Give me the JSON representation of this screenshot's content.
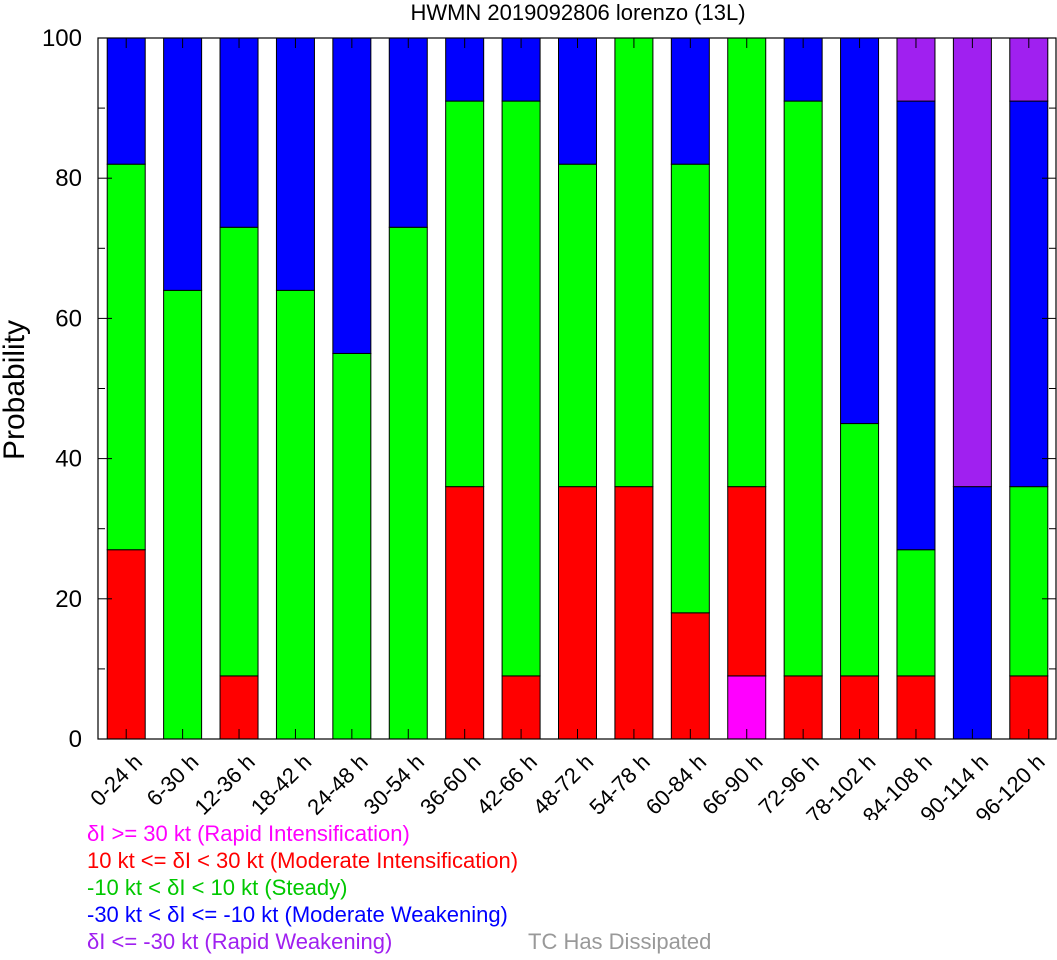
{
  "chart_data": {
    "type": "bar",
    "stacked": true,
    "title": "HWMN 2019092806 lorenzo (13L)",
    "xlabel": "",
    "ylabel": "Probability",
    "ylim": [
      0,
      100
    ],
    "yticks": [
      0,
      20,
      40,
      60,
      80,
      100
    ],
    "grid": false,
    "categories": [
      "0-24 h",
      "6-30 h",
      "12-36 h",
      "18-42 h",
      "24-48 h",
      "30-54 h",
      "36-60 h",
      "42-66 h",
      "48-72 h",
      "54-78 h",
      "60-84 h",
      "66-90 h",
      "72-96 h",
      "78-102 h",
      "84-108 h",
      "90-114 h",
      "96-120 h"
    ],
    "series": [
      {
        "color": "#ff00ff",
        "values": [
          0,
          0,
          0,
          0,
          0,
          0,
          0,
          0,
          0,
          0,
          0,
          9,
          0,
          0,
          0,
          0,
          0
        ]
      },
      {
        "color": "#ff0000",
        "values": [
          27,
          0,
          9,
          0,
          0,
          0,
          36,
          9,
          36,
          36,
          18,
          27,
          9,
          9,
          9,
          0,
          9
        ]
      },
      {
        "color": "#00ff00",
        "values": [
          55,
          64,
          64,
          64,
          55,
          73,
          55,
          82,
          46,
          64,
          64,
          64,
          82,
          36,
          18,
          0,
          27
        ]
      },
      {
        "color": "#0000ff",
        "values": [
          18,
          36,
          27,
          36,
          45,
          27,
          9,
          9,
          18,
          0,
          18,
          0,
          9,
          55,
          64,
          36,
          55
        ]
      },
      {
        "color": "#a020f0",
        "values": [
          0,
          0,
          0,
          0,
          0,
          0,
          0,
          0,
          0,
          0,
          0,
          0,
          0,
          0,
          9,
          64,
          9
        ]
      }
    ]
  },
  "legend": {
    "ri": "δI >= 30 kt (Rapid Intensification)",
    "mi": "10 kt <= δI < 30 kt (Moderate Intensification)",
    "steady": "-10 kt < δI < 10 kt (Steady)",
    "mw": "-30 kt < δI <= -10 kt (Moderate Weakening)",
    "rw": "δI <= -30 kt (Rapid Weakening)",
    "dissipated": "TC Has Dissipated"
  },
  "colors": {
    "ri": "#ff00ff",
    "mi": "#ff0000",
    "steady": "#00c800",
    "mw": "#0000ff",
    "rw": "#a020f0",
    "dissipated": "#999999"
  }
}
